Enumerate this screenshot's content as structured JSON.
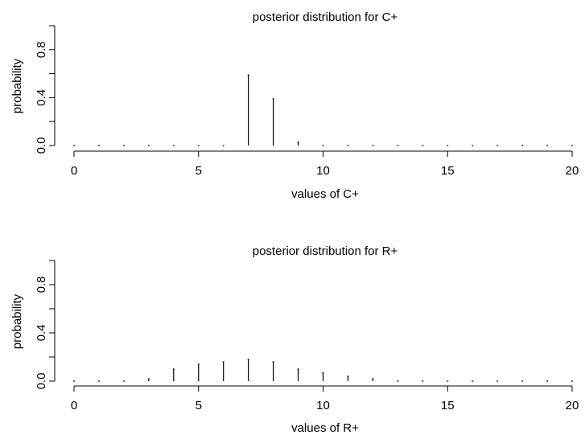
{
  "chart_data": [
    {
      "type": "bar",
      "title": "posterior distribution for C+",
      "xlabel": "values of C+",
      "ylabel": "probability",
      "xlim": [
        0,
        20
      ],
      "ylim": [
        0,
        1.0
      ],
      "x_ticks": [
        "0",
        "5",
        "10",
        "15",
        "20"
      ],
      "y_ticks": [
        "0.0",
        "0.4",
        "0.8"
      ],
      "grid": false,
      "x": [
        0,
        1,
        2,
        3,
        4,
        5,
        6,
        7,
        8,
        9,
        10,
        11,
        12,
        13,
        14,
        15,
        16,
        17,
        18,
        19,
        20
      ],
      "values": [
        0,
        0,
        0,
        0,
        0,
        0,
        0,
        0.59,
        0.39,
        0.03,
        0,
        0,
        0,
        0,
        0,
        0,
        0,
        0,
        0,
        0,
        0
      ]
    },
    {
      "type": "bar",
      "title": "posterior distribution for R+",
      "xlabel": "values of R+",
      "ylabel": "probability",
      "xlim": [
        0,
        20
      ],
      "ylim": [
        0,
        1.0
      ],
      "x_ticks": [
        "0",
        "5",
        "10",
        "15",
        "20"
      ],
      "y_ticks": [
        "0.0",
        "0.4",
        "0.8"
      ],
      "grid": false,
      "x": [
        0,
        1,
        2,
        3,
        4,
        5,
        6,
        7,
        8,
        9,
        10,
        11,
        12,
        13,
        14,
        15,
        16,
        17,
        18,
        19,
        20
      ],
      "values": [
        0,
        0,
        0,
        0.02,
        0.1,
        0.14,
        0.16,
        0.18,
        0.16,
        0.1,
        0.07,
        0.04,
        0.02,
        0,
        0,
        0,
        0,
        0,
        0,
        0,
        0
      ]
    }
  ]
}
